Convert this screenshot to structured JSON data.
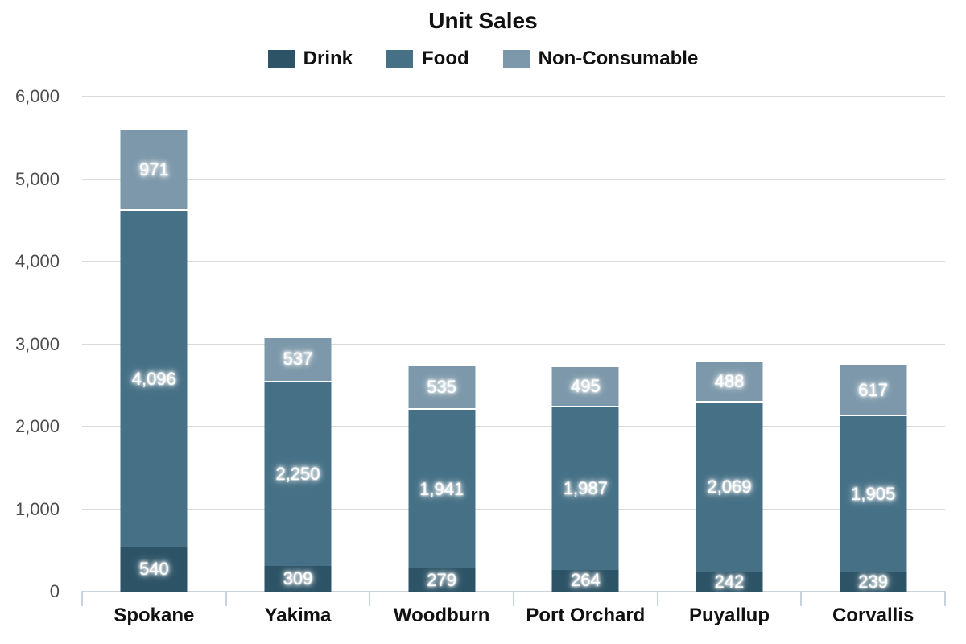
{
  "chart_data": {
    "type": "bar",
    "stacked": true,
    "title": "Unit Sales",
    "xlabel": "",
    "ylabel": "",
    "categories": [
      "Spokane",
      "Yakima",
      "Woodburn",
      "Port Orchard",
      "Puyallup",
      "Corvallis"
    ],
    "series": [
      {
        "name": "Drink",
        "color": "#2D5366",
        "values": [
          540,
          309,
          279,
          264,
          242,
          239
        ],
        "labels": [
          "540",
          "309",
          "279",
          "264",
          "242",
          "239"
        ]
      },
      {
        "name": "Food",
        "color": "#467086",
        "values": [
          4096,
          2250,
          1941,
          1987,
          2069,
          1905
        ],
        "labels": [
          "4,096",
          "2,250",
          "1,941",
          "1,987",
          "2,069",
          "1,905"
        ]
      },
      {
        "name": "Non-Consumable",
        "color": "#7C98AA",
        "values": [
          971,
          537,
          535,
          495,
          488,
          617
        ],
        "labels": [
          "971",
          "537",
          "535",
          "495",
          "488",
          "617"
        ]
      }
    ],
    "ylim": [
      0,
      6000
    ],
    "yticks": [
      {
        "value": 0,
        "label": "0"
      },
      {
        "value": 1000,
        "label": "1,000"
      },
      {
        "value": 2000,
        "label": "2,000"
      },
      {
        "value": 3000,
        "label": "3,000"
      },
      {
        "value": 4000,
        "label": "4,000"
      },
      {
        "value": 5000,
        "label": "5,000"
      },
      {
        "value": 6000,
        "label": "6,000"
      }
    ],
    "grid": true,
    "legend_position": "top"
  },
  "colors": {
    "background": "#FFFFFF",
    "gridline": "#D9D9D9",
    "axis": "#C8D3DD",
    "y_tick_text": "#4C4C4C",
    "label_text": "#111111",
    "bar_value_text": "#FFFFFF"
  }
}
